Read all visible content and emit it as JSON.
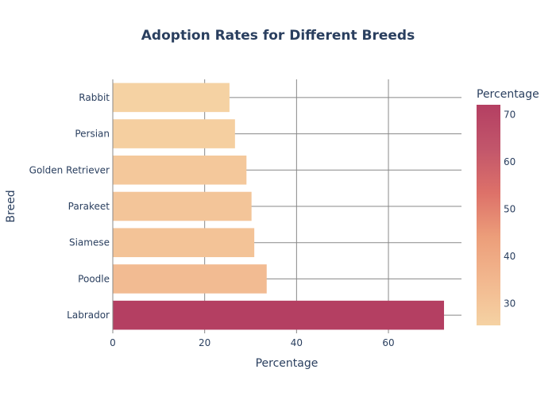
{
  "chart_data": {
    "type": "bar",
    "orientation": "horizontal",
    "title": "Adoption Rates for Different Breeds",
    "xlabel": "Percentage",
    "ylabel": "Breed",
    "categories": [
      "Labrador",
      "Poodle",
      "Siamese",
      "Parakeet",
      "Golden Retriever",
      "Persian",
      "Rabbit"
    ],
    "values": [
      72.1,
      33.5,
      30.8,
      30.2,
      29.1,
      26.6,
      25.4
    ],
    "xlim": [
      0,
      75.9
    ],
    "xticks": [
      0,
      20,
      40,
      60
    ],
    "grid": true,
    "colorbar": {
      "title": "Percentage",
      "range": [
        25.4,
        72.1
      ],
      "ticks": [
        30,
        40,
        50,
        60,
        70
      ],
      "colors": [
        "#f5d2a3",
        "#f2b88f",
        "#ec9e7a",
        "#dd7169",
        "#c2566b",
        "#b43f62"
      ]
    }
  }
}
